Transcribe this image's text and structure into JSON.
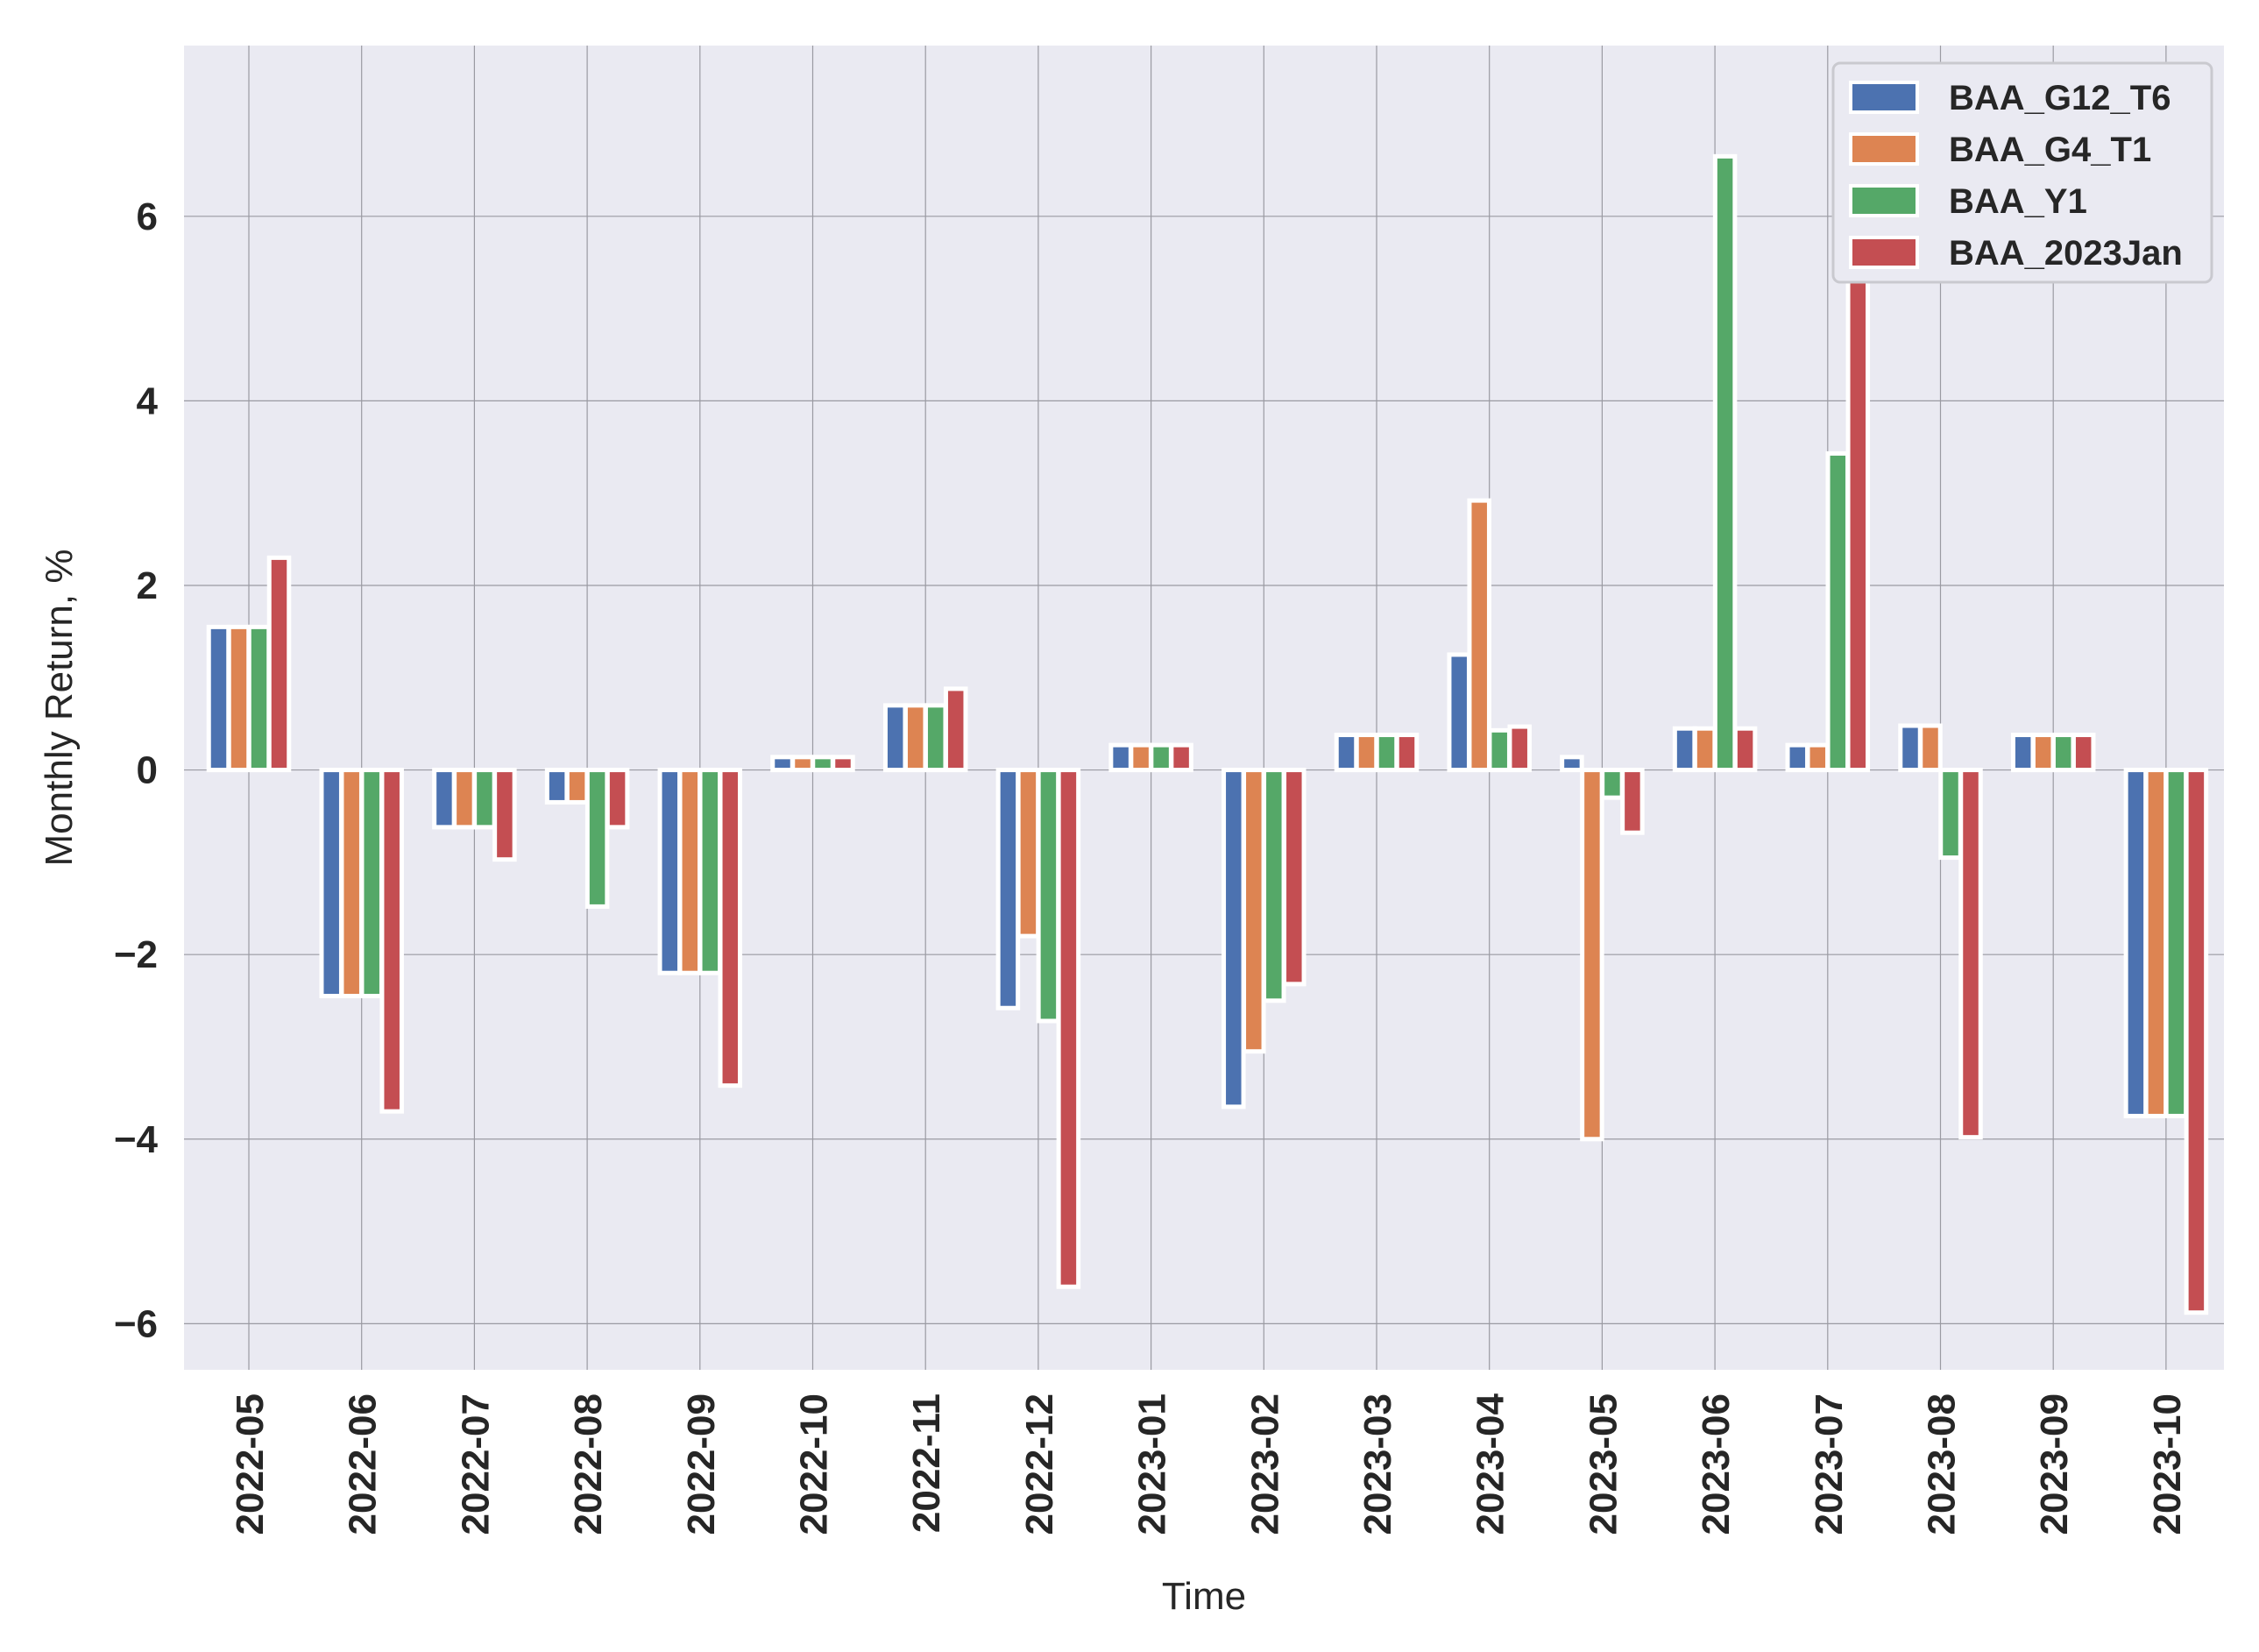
{
  "chart_data": {
    "type": "bar",
    "title": "",
    "xlabel": "Time",
    "ylabel": "Monthly Return, %",
    "ylim": [
      -6.5,
      7.85
    ],
    "yticks": [
      -6,
      -4,
      -2,
      0,
      2,
      4,
      6
    ],
    "ytick_labels": [
      "−6",
      "−4",
      "−2",
      "0",
      "2",
      "4",
      "6"
    ],
    "grid": true,
    "legend_position": "top-right",
    "categories": [
      "2022-05",
      "2022-06",
      "2022-07",
      "2022-08",
      "2022-09",
      "2022-10",
      "2022-11",
      "2022-12",
      "2023-01",
      "2023-02",
      "2023-03",
      "2023-04",
      "2023-05",
      "2023-06",
      "2023-07",
      "2023-08",
      "2023-09",
      "2023-10"
    ],
    "series": [
      {
        "name": "BAA_G12_T6",
        "color": "#4c72b0",
        "values": [
          1.55,
          -2.45,
          -0.62,
          -0.35,
          -2.2,
          0.14,
          0.7,
          -2.58,
          0.27,
          -3.65,
          0.38,
          1.25,
          0.14,
          0.45,
          0.27,
          0.48,
          0.38,
          -3.75
        ]
      },
      {
        "name": "BAA_G4_T1",
        "color": "#dd8452",
        "values": [
          1.55,
          -2.45,
          -0.62,
          -0.35,
          -2.2,
          0.14,
          0.7,
          -1.8,
          0.27,
          -3.05,
          0.38,
          2.92,
          -4.0,
          0.45,
          0.27,
          0.48,
          0.38,
          -3.75
        ]
      },
      {
        "name": "BAA_Y1",
        "color": "#55a868",
        "values": [
          1.55,
          -2.45,
          -0.62,
          -1.48,
          -2.2,
          0.14,
          0.7,
          -2.72,
          0.27,
          -2.5,
          0.38,
          0.43,
          -0.3,
          6.65,
          3.43,
          -0.95,
          0.38,
          -3.75
        ]
      },
      {
        "name": "BAA_2023Jan",
        "color": "#c44e52",
        "values": [
          2.3,
          -3.7,
          -0.97,
          -0.62,
          -3.42,
          0.14,
          0.88,
          -5.6,
          0.27,
          -2.32,
          0.38,
          0.47,
          -0.68,
          0.45,
          7.22,
          -3.98,
          0.38,
          -5.88
        ]
      }
    ]
  }
}
